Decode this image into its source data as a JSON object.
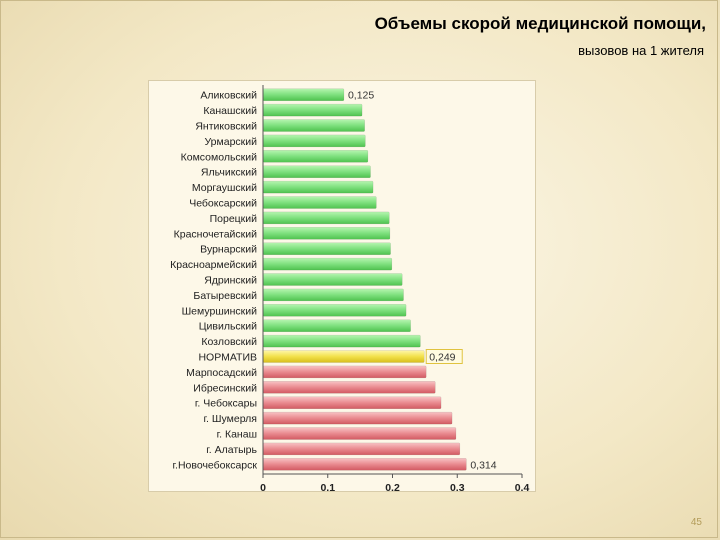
{
  "slide": {
    "title_line1": "Объемы скорой медицинской помощи,",
    "title_line2": "вызовов на 1 жителя",
    "page_number": "45"
  },
  "colors": {
    "above_norm_green": "#7ee07e",
    "norm_yellow": "#f2e14a",
    "below_norm_red": "#e98a8f",
    "axis": "#555555"
  },
  "chart_data": {
    "type": "bar",
    "orientation": "horizontal",
    "title": "Объемы скорой медицинской помощи, вызовов на 1 жителя",
    "xlabel": "",
    "ylabel": "",
    "xlim": [
      0,
      0.4
    ],
    "x_ticks": [
      "0",
      "0,1",
      "0,2",
      "0,3",
      "0,4"
    ],
    "grid": false,
    "legend": "none",
    "categories": [
      "Аликовский",
      "Канашский",
      "Янтиковский",
      "Урмарский",
      "Комсомольский",
      "Яльчикский",
      "Моргаушский",
      "Чебоксарский",
      "Порецкий",
      "Красночетайский",
      "Вурнарский",
      "Красноармейский",
      "Ядринский",
      "Батыревский",
      "Шемуршинский",
      "Цивильский",
      "Козловский",
      "НОРМАТИВ",
      "Марпосадский",
      "Ибресинский",
      "г. Чебоксары",
      "г. Шумерля",
      "г. Канаш",
      "г. Алатырь",
      "г.Новочебоксарск"
    ],
    "values": [
      0.125,
      0.153,
      0.157,
      0.158,
      0.162,
      0.166,
      0.17,
      0.175,
      0.195,
      0.196,
      0.197,
      0.199,
      0.215,
      0.217,
      0.221,
      0.228,
      0.243,
      0.249,
      0.252,
      0.266,
      0.275,
      0.292,
      0.298,
      0.304,
      0.314
    ],
    "bar_groups": [
      "green",
      "green",
      "green",
      "green",
      "green",
      "green",
      "green",
      "green",
      "green",
      "green",
      "green",
      "green",
      "green",
      "green",
      "green",
      "green",
      "green",
      "yellow",
      "red",
      "red",
      "red",
      "red",
      "red",
      "red",
      "red"
    ],
    "data_labels": [
      {
        "index": 0,
        "text": "0,125"
      },
      {
        "index": 17,
        "text": "0,249"
      },
      {
        "index": 24,
        "text": "0,314"
      }
    ]
  }
}
